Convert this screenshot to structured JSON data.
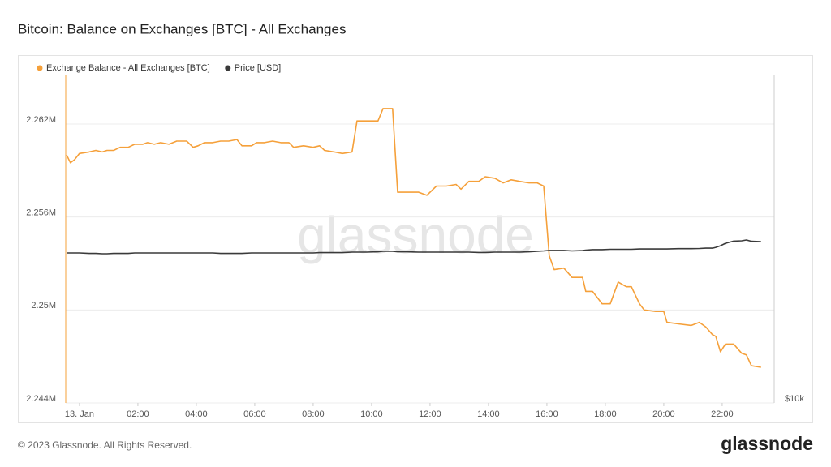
{
  "chart_data": {
    "type": "line",
    "title": "Bitcoin: Balance on Exchanges [BTC] - All Exchanges",
    "watermark": "glassnode",
    "footer": "© 2023 Glassnode. All Rights Reserved.",
    "logo": "glassnode",
    "x": [
      -0.44,
      -0.31,
      -0.17,
      0,
      0.33,
      0.56,
      0.78,
      0.94,
      1.17,
      1.39,
      1.67,
      1.89,
      2.17,
      2.33,
      2.56,
      2.78,
      3.06,
      3.33,
      3.67,
      3.89,
      4.06,
      4.28,
      4.56,
      4.83,
      5.11,
      5.39,
      5.56,
      5.89,
      6.06,
      6.33,
      6.61,
      6.89,
      7.17,
      7.33,
      7.67,
      8,
      8.22,
      8.39,
      8.72,
      9,
      9.33,
      9.5,
      9.83,
      10.22,
      10.39,
      10.72,
      10.89,
      11.22,
      11.61,
      11.89,
      12.22,
      12.56,
      12.89,
      13.06,
      13.33,
      13.67,
      13.89,
      14.22,
      14.5,
      14.78,
      15.06,
      15.39,
      15.67,
      15.89,
      16.08,
      16.25,
      16.58,
      16.86,
      17.22,
      17.33,
      17.56,
      17.89,
      18.17,
      18.44,
      18.72,
      18.89,
      19.17,
      19.33,
      19.72,
      20,
      20.11,
      20.5,
      20.94,
      21.22,
      21.44,
      21.67,
      21.78,
      21.94,
      22.11,
      22.39,
      22.67,
      22.83,
      23,
      23.33
    ],
    "series": [
      {
        "name": "Exchange Balance - All Exchanges [BTC]",
        "color": "#f5a03a",
        "axis": "y",
        "values": [
          2260000,
          2259500,
          2259700,
          2260100,
          2260200,
          2260300,
          2260200,
          2260300,
          2260300,
          2260500,
          2260500,
          2260700,
          2260700,
          2260800,
          2260700,
          2260800,
          2260700,
          2260900,
          2260900,
          2260500,
          2260600,
          2260800,
          2260800,
          2260900,
          2260900,
          2261000,
          2260600,
          2260600,
          2260800,
          2260800,
          2260900,
          2260800,
          2260800,
          2260500,
          2260600,
          2260500,
          2260600,
          2260300,
          2260200,
          2260100,
          2260200,
          2262200,
          2262200,
          2262200,
          2263000,
          2263000,
          2257600,
          2257600,
          2257600,
          2257400,
          2258000,
          2258000,
          2258100,
          2257800,
          2258300,
          2258300,
          2258600,
          2258500,
          2258200,
          2258400,
          2258300,
          2258200,
          2258200,
          2258000,
          2253500,
          2252600,
          2252700,
          2252100,
          2252100,
          2251200,
          2251200,
          2250400,
          2250400,
          2251800,
          2251500,
          2251500,
          2250400,
          2250000,
          2249900,
          2249900,
          2249200,
          2249100,
          2249000,
          2249200,
          2248900,
          2248400,
          2248300,
          2247300,
          2247800,
          2247800,
          2247200,
          2247100,
          2246400,
          2246300
        ]
      },
      {
        "name": "Price [USD]",
        "color": "#3a3a3a",
        "axis": "y2",
        "values": [
          19160,
          19160,
          19160,
          19160,
          19130,
          19130,
          19110,
          19110,
          19130,
          19130,
          19130,
          19160,
          19160,
          19160,
          19160,
          19160,
          19160,
          19160,
          19160,
          19160,
          19160,
          19160,
          19160,
          19130,
          19130,
          19130,
          19130,
          19160,
          19160,
          19160,
          19160,
          19160,
          19160,
          19160,
          19160,
          19160,
          19180,
          19180,
          19180,
          19180,
          19210,
          19210,
          19210,
          19230,
          19260,
          19260,
          19230,
          19230,
          19210,
          19210,
          19210,
          19210,
          19210,
          19210,
          19210,
          19190,
          19190,
          19210,
          19210,
          19210,
          19210,
          19230,
          19260,
          19280,
          19310,
          19310,
          19310,
          19280,
          19300,
          19330,
          19360,
          19360,
          19380,
          19380,
          19380,
          19380,
          19400,
          19400,
          19400,
          19400,
          19400,
          19420,
          19420,
          19430,
          19450,
          19450,
          19500,
          19600,
          19750,
          19880,
          19900,
          19950,
          19870,
          19850
        ]
      }
    ],
    "xlim": [
      -0.47,
      23.78
    ],
    "xticks": [
      {
        "value": 0,
        "label": "13. Jan"
      },
      {
        "value": 2,
        "label": "02:00"
      },
      {
        "value": 4,
        "label": "04:00"
      },
      {
        "value": 6,
        "label": "06:00"
      },
      {
        "value": 8,
        "label": "08:00"
      },
      {
        "value": 10,
        "label": "10:00"
      },
      {
        "value": 12,
        "label": "12:00"
      },
      {
        "value": 14,
        "label": "14:00"
      },
      {
        "value": 16,
        "label": "16:00"
      },
      {
        "value": 18,
        "label": "18:00"
      },
      {
        "value": 20,
        "label": "20:00"
      },
      {
        "value": 22,
        "label": "22:00"
      }
    ],
    "ylim": [
      2244000,
      2265140
    ],
    "yticks": [
      {
        "value": 2244000,
        "label": "2.244M"
      },
      {
        "value": 2250000,
        "label": "2.25M"
      },
      {
        "value": 2256000,
        "label": "2.256M"
      },
      {
        "value": 2262000,
        "label": "2.262M"
      }
    ],
    "y2lim": [
      10000,
      30000
    ],
    "y2ticks": [
      {
        "value": 10000,
        "label": "$10k"
      }
    ],
    "grid": true
  }
}
